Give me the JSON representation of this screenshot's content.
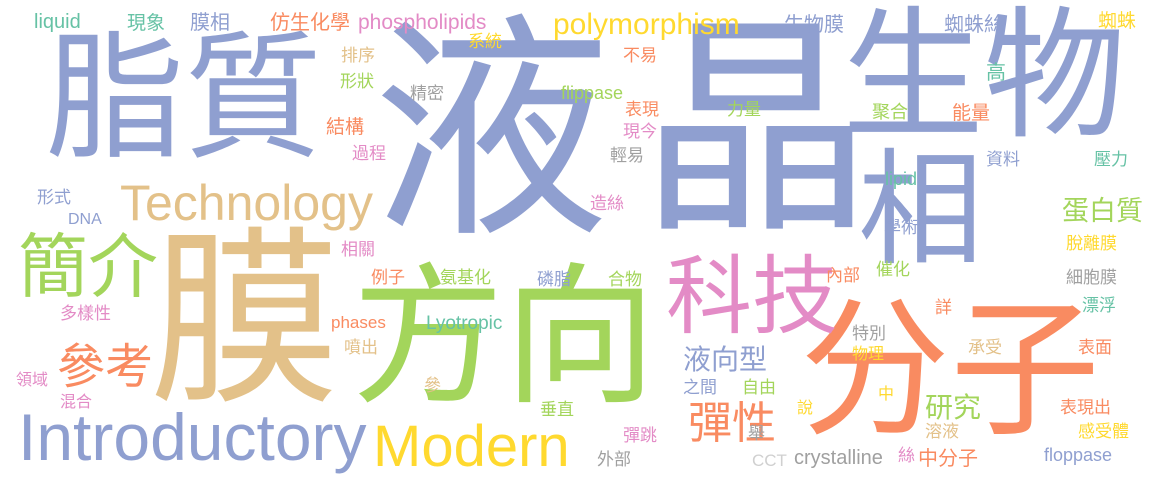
{
  "words": [
    {
      "text": "液",
      "color": "#8f9fd0"
    },
    {
      "text": "晶",
      "color": "#8f9fd0"
    },
    {
      "text": "膜",
      "color": "#e3c189"
    },
    {
      "text": "分子",
      "color": "#f98b61"
    },
    {
      "text": "方向",
      "color": "#a3d55b"
    },
    {
      "text": "生物",
      "color": "#8f9fd0"
    },
    {
      "text": "脂質",
      "color": "#8f9fd0"
    },
    {
      "text": "相",
      "color": "#8f9fd0"
    },
    {
      "text": "科技",
      "color": "#e38bc6"
    },
    {
      "text": "Introductory",
      "color": "#8f9fd0"
    },
    {
      "text": "Modern",
      "color": "#ffd92f"
    },
    {
      "text": "Technology",
      "color": "#e3c189"
    },
    {
      "text": "簡介",
      "color": "#a3d55b"
    },
    {
      "text": "參考",
      "color": "#f98b61"
    },
    {
      "text": "polymorphism",
      "color": "#ffd92f"
    },
    {
      "text": "彈性",
      "color": "#f98b61"
    },
    {
      "text": "液向型",
      "color": "#8f9fd0"
    },
    {
      "text": "研究",
      "color": "#a3d55b"
    },
    {
      "text": "蛋白質",
      "color": "#a3d55b"
    },
    {
      "text": "liquid",
      "color": "#66c2a5"
    },
    {
      "text": "現象",
      "color": "#66c2a5"
    },
    {
      "text": "膜相",
      "color": "#8f9fd0"
    },
    {
      "text": "仿生化學",
      "color": "#f98b61"
    },
    {
      "text": "phospholipids",
      "color": "#e38bc6"
    },
    {
      "text": "生物膜",
      "color": "#8f9fd0"
    },
    {
      "text": "蜘蛛絲",
      "color": "#8f9fd0"
    },
    {
      "text": "蜘蛛",
      "color": "#ffd92f"
    },
    {
      "text": "系統",
      "color": "#ffd92f"
    },
    {
      "text": "排序",
      "color": "#e3c189"
    },
    {
      "text": "不易",
      "color": "#f98b61"
    },
    {
      "text": "flippase",
      "color": "#a3d55b"
    },
    {
      "text": "形狀",
      "color": "#a3d55b"
    },
    {
      "text": "精密",
      "color": "#a0a0a0"
    },
    {
      "text": "高",
      "color": "#66c2a5"
    },
    {
      "text": "表現",
      "color": "#f98b61"
    },
    {
      "text": "力量",
      "color": "#a3d55b"
    },
    {
      "text": "聚合",
      "color": "#a3d55b"
    },
    {
      "text": "能量",
      "color": "#f98b61"
    },
    {
      "text": "結構",
      "color": "#f98b61"
    },
    {
      "text": "現今",
      "color": "#e38bc6"
    },
    {
      "text": "過程",
      "color": "#e38bc6"
    },
    {
      "text": "輕易",
      "color": "#a0a0a0"
    },
    {
      "text": "資料",
      "color": "#8f9fd0"
    },
    {
      "text": "壓力",
      "color": "#66c2a5"
    },
    {
      "text": "lipid",
      "color": "#66c2a5"
    },
    {
      "text": "形式",
      "color": "#8f9fd0"
    },
    {
      "text": "DNA",
      "color": "#8f9fd0"
    },
    {
      "text": "造絲",
      "color": "#e38bc6"
    },
    {
      "text": "學術",
      "color": "#8f9fd0"
    },
    {
      "text": "脫離膜",
      "color": "#ffd92f"
    },
    {
      "text": "相關",
      "color": "#e38bc6"
    },
    {
      "text": "例子",
      "color": "#f98b61"
    },
    {
      "text": "氨基化",
      "color": "#a3d55b"
    },
    {
      "text": "磷脂",
      "color": "#8f9fd0"
    },
    {
      "text": "合物",
      "color": "#a3d55b"
    },
    {
      "text": "內部",
      "color": "#f98b61"
    },
    {
      "text": "催化",
      "color": "#a3d55b"
    },
    {
      "text": "細胞膜",
      "color": "#a0a0a0"
    },
    {
      "text": "多樣性",
      "color": "#e38bc6"
    },
    {
      "text": "phases",
      "color": "#f98b61"
    },
    {
      "text": "Lyotropic",
      "color": "#66c2a5"
    },
    {
      "text": "特別",
      "color": "#a0a0a0"
    },
    {
      "text": "詳",
      "color": "#f98b61"
    },
    {
      "text": "漂浮",
      "color": "#66c2a5"
    },
    {
      "text": "噴出",
      "color": "#e3c189"
    },
    {
      "text": "物理",
      "color": "#ffd92f"
    },
    {
      "text": "承受",
      "color": "#e3c189"
    },
    {
      "text": "表面",
      "color": "#f98b61"
    },
    {
      "text": "領域",
      "color": "#e38bc6"
    },
    {
      "text": "參",
      "color": "#e3c189"
    },
    {
      "text": "之間",
      "color": "#8f9fd0"
    },
    {
      "text": "自由",
      "color": "#a3d55b"
    },
    {
      "text": "中",
      "color": "#ffd92f"
    },
    {
      "text": "混合",
      "color": "#e38bc6"
    },
    {
      "text": "說",
      "color": "#ffd92f"
    },
    {
      "text": "表現出",
      "color": "#f98b61"
    },
    {
      "text": "垂直",
      "color": "#a3d55b"
    },
    {
      "text": "舉",
      "color": "#a0a0a0"
    },
    {
      "text": "溶液",
      "color": "#e3c189"
    },
    {
      "text": "感受體",
      "color": "#ffd92f"
    },
    {
      "text": "彈跳",
      "color": "#e38bc6"
    },
    {
      "text": "外部",
      "color": "#a0a0a0"
    },
    {
      "text": "CCT",
      "color": "#d0d0d0"
    },
    {
      "text": "crystalline",
      "color": "#a0a0a0"
    },
    {
      "text": "絲",
      "color": "#e38bc6"
    },
    {
      "text": "中分子",
      "color": "#f98b61"
    },
    {
      "text": "floppase",
      "color": "#8f9fd0"
    }
  ]
}
